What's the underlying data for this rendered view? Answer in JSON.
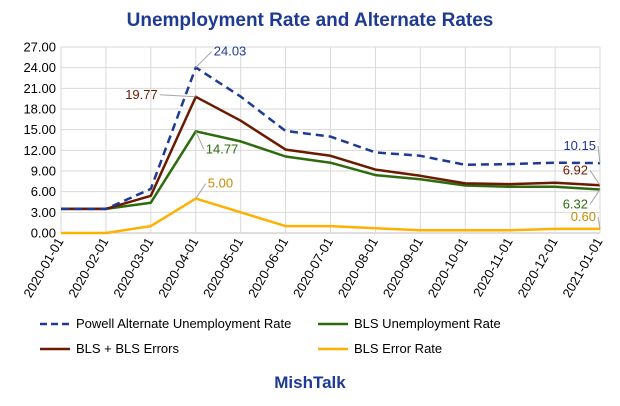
{
  "chart_data": {
    "type": "line",
    "title": "Unemployment Rate and Alternate Rates",
    "xlabel": "",
    "ylabel": "",
    "ylim": [
      0,
      27
    ],
    "yticks": [
      "0.00",
      "3.00",
      "6.00",
      "9.00",
      "12.00",
      "15.00",
      "18.00",
      "21.00",
      "24.00",
      "27.00"
    ],
    "categories": [
      "2020-01-01",
      "2020-02-01",
      "2020-03-01",
      "2020-04-01",
      "2020-05-01",
      "2020-06-01",
      "2020-07-01",
      "2020-08-01",
      "2020-09-01",
      "2020-10-01",
      "2020-11-01",
      "2020-12-01",
      "2021-01-01"
    ],
    "series": [
      {
        "name": "Powell Alternate Unemployment Rate",
        "color": "#1f3a93",
        "dash": "dashed",
        "values": [
          3.5,
          3.5,
          6.4,
          24.03,
          19.8,
          14.8,
          14.0,
          11.7,
          11.2,
          9.9,
          10.0,
          10.2,
          10.15
        ]
      },
      {
        "name": "BLS Unemployment Rate",
        "color": "#2e6b0f",
        "dash": "solid",
        "values": [
          3.5,
          3.5,
          4.4,
          14.77,
          13.3,
          11.1,
          10.2,
          8.4,
          7.8,
          6.9,
          6.7,
          6.7,
          6.32
        ]
      },
      {
        "name": "BLS + BLS Errors",
        "color": "#6b1a00",
        "dash": "solid",
        "values": [
          3.5,
          3.5,
          5.4,
          19.77,
          16.3,
          12.1,
          11.2,
          9.2,
          8.3,
          7.2,
          7.1,
          7.3,
          6.92
        ]
      },
      {
        "name": "BLS Error Rate",
        "color": "#ffb000",
        "dash": "solid",
        "values": [
          0.0,
          0.0,
          1.0,
          5.0,
          3.0,
          1.0,
          1.0,
          0.7,
          0.4,
          0.4,
          0.4,
          0.6,
          0.6
        ]
      }
    ],
    "data_labels": [
      {
        "series": 0,
        "index": 3,
        "text": "24.03",
        "color": "#1f3a93"
      },
      {
        "series": 2,
        "index": 3,
        "text": "19.77",
        "color": "#6b1a00"
      },
      {
        "series": 1,
        "index": 3,
        "text": "14.77",
        "color": "#2e6b0f"
      },
      {
        "series": 3,
        "index": 3,
        "text": "5.00",
        "color": "#c98a00"
      },
      {
        "series": 0,
        "index": 12,
        "text": "10.15",
        "color": "#1f3a93"
      },
      {
        "series": 2,
        "index": 12,
        "text": "6.92",
        "color": "#6b1a00"
      },
      {
        "series": 1,
        "index": 12,
        "text": "6.32",
        "color": "#2e6b0f"
      },
      {
        "series": 3,
        "index": 12,
        "text": "0.60",
        "color": "#c98a00"
      }
    ],
    "legend": [
      "Powell Alternate Unemployment Rate",
      "BLS Unemployment Rate",
      "BLS + BLS Errors",
      "BLS Error Rate"
    ],
    "grid": true
  },
  "footer": "MishTalk",
  "colors": {
    "title": "#1f3a93",
    "footer": "#1f3a93",
    "grid": "#d9d9d9",
    "axis": "#bfbfbf"
  }
}
